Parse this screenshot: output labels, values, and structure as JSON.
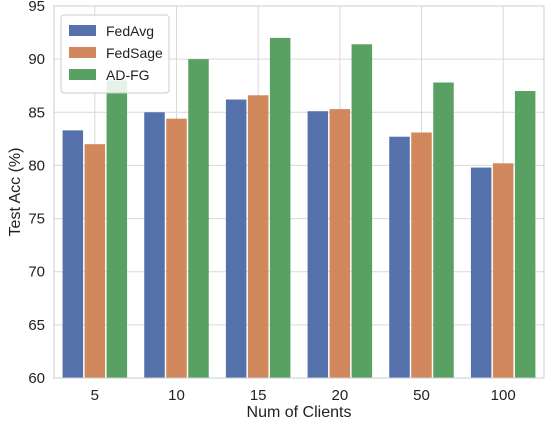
{
  "chart_data": {
    "type": "bar",
    "title": "",
    "xlabel": "Num of Clients",
    "ylabel": "Test Acc (%)",
    "categories": [
      "5",
      "10",
      "15",
      "20",
      "50",
      "100"
    ],
    "ylim": [
      60,
      95
    ],
    "yticks": [
      "60",
      "65",
      "70",
      "75",
      "80",
      "85",
      "90",
      "95"
    ],
    "grid": true,
    "legend_position": "top-left",
    "series": [
      {
        "name": "FedAvg",
        "color": "#5471ab",
        "values": [
          83.3,
          85.0,
          86.2,
          85.1,
          82.7,
          79.8
        ]
      },
      {
        "name": "FedSage",
        "color": "#d1885c",
        "values": [
          82.0,
          84.4,
          86.6,
          85.3,
          83.1,
          80.2
        ]
      },
      {
        "name": "AD-FG",
        "color": "#59a163",
        "values": [
          88.0,
          90.0,
          92.0,
          91.4,
          87.8,
          87.0
        ]
      }
    ]
  }
}
